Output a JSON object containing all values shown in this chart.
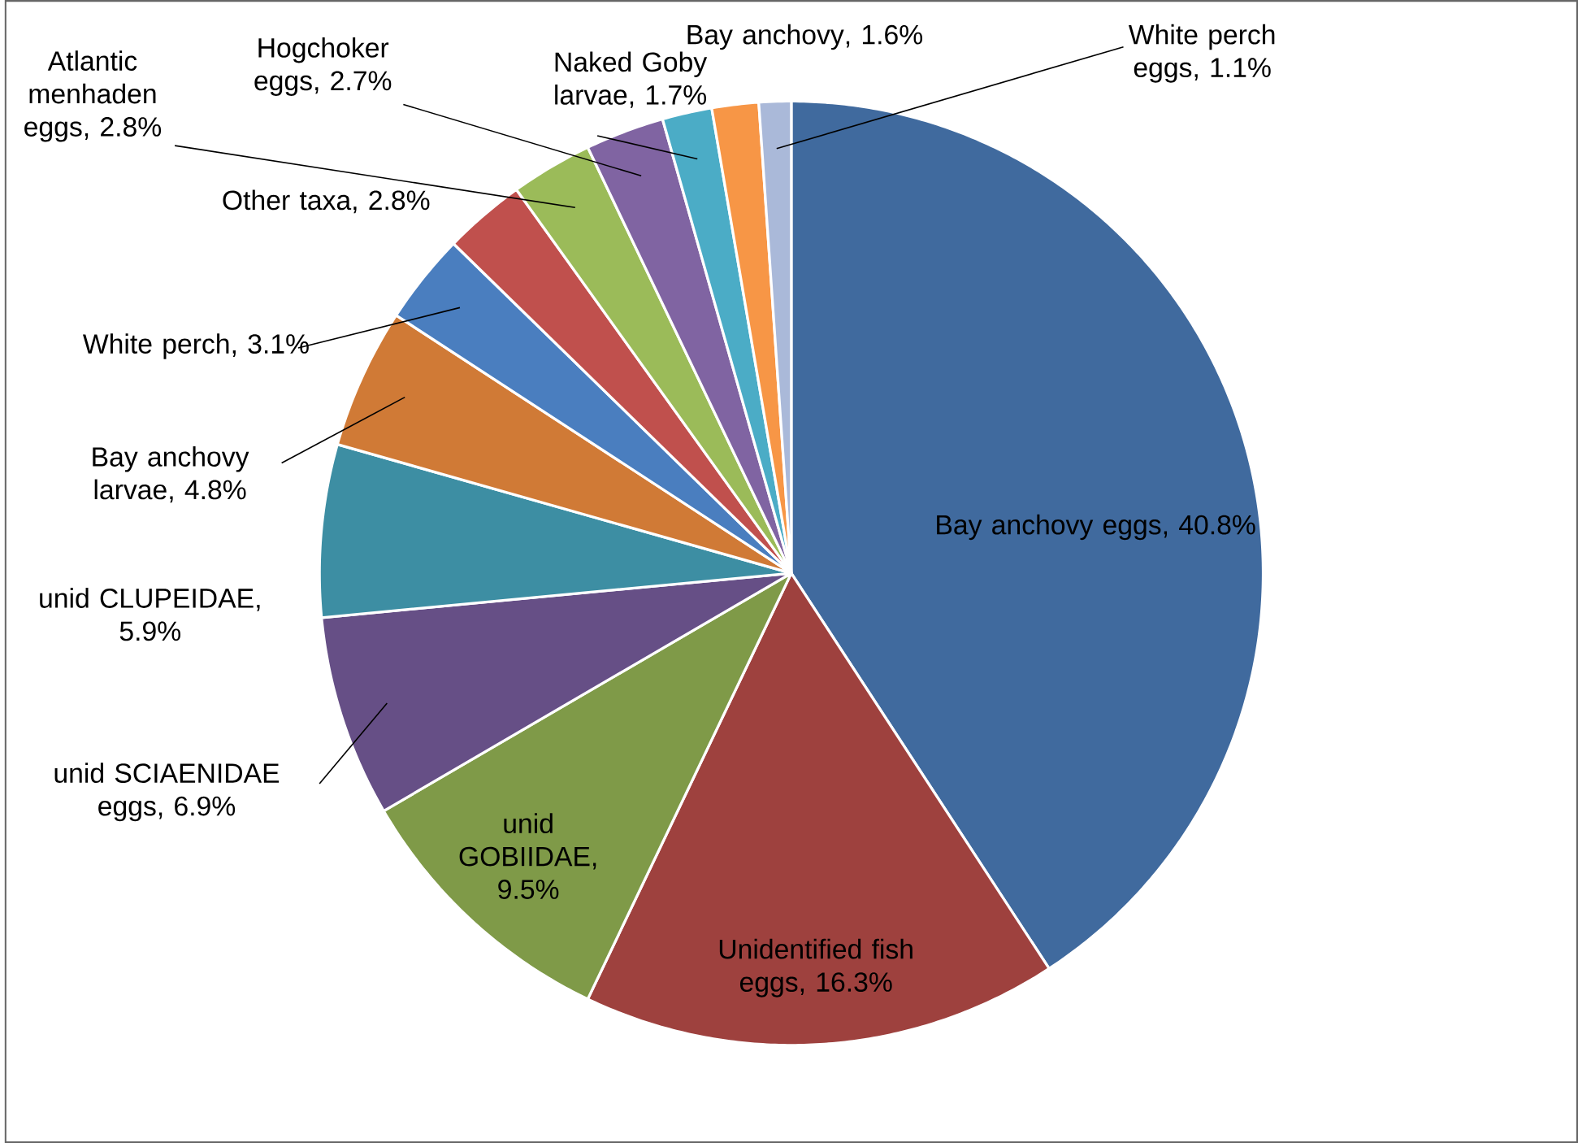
{
  "chart_data": {
    "type": "pie",
    "categories": [
      "Bay anchovy eggs",
      "Unidentified fish eggs",
      "unid GOBIIDAE",
      "unid SCIAENIDAE eggs",
      "unid CLUPEIDAE",
      "Bay anchovy larvae",
      "White perch",
      "Other taxa",
      "Atlantic menhaden eggs",
      "Hogchoker eggs",
      "Naked Goby larvae",
      "Bay anchovy",
      "White perch eggs"
    ],
    "values": [
      40.8,
      16.3,
      9.5,
      6.9,
      5.9,
      4.8,
      3.1,
      2.8,
      2.8,
      2.7,
      1.7,
      1.6,
      1.1
    ],
    "value_labels": [
      ", 40.8%",
      ", 16.3%",
      ", 9.5%",
      ", 6.9%",
      ", 5.9%",
      ", 4.8%",
      ", 3.1%",
      ", 2.8%",
      ", 2.8%",
      ", 2.7%",
      ", 1.7%",
      ", 1.6%",
      ", 1.1%"
    ],
    "colors": [
      "#406a9e",
      "#9e413e",
      "#7f9a48",
      "#664f86",
      "#3d8ea3",
      "#d07a36",
      "#4a7ebf",
      "#c0504d",
      "#9bbb59",
      "#8064a2",
      "#4bacc6",
      "#f79646",
      "#aab9d9"
    ]
  }
}
